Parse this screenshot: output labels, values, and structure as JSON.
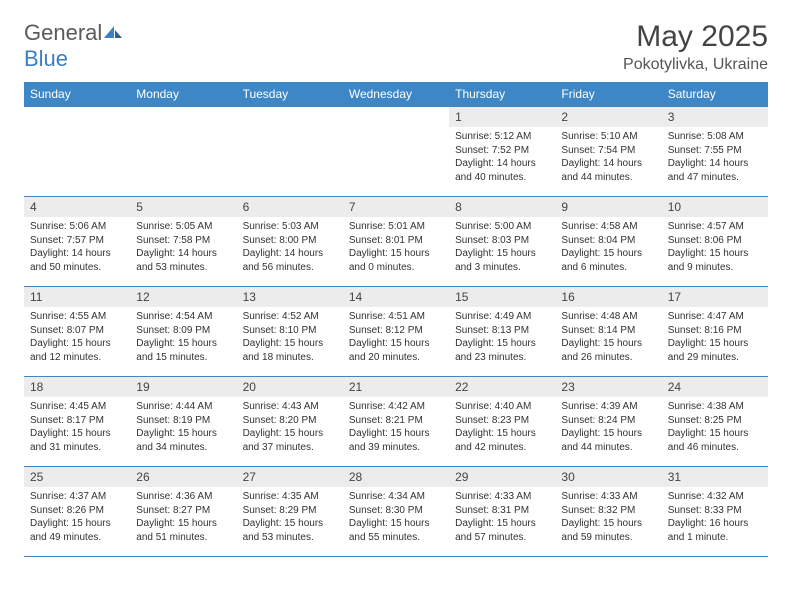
{
  "logo": {
    "word1": "General",
    "word2": "Blue"
  },
  "title": "May 2025",
  "subtitle": "Pokotylivka, Ukraine",
  "colors": {
    "header_bg": "#3d87c7",
    "header_text": "#ffffff",
    "band_bg": "#ececec",
    "border": "#3d87c7",
    "logo_gray": "#5a5a5a",
    "logo_blue": "#3b7fc4",
    "body_text": "#333333"
  },
  "typography": {
    "title_fontsize": 30,
    "subtitle_fontsize": 16,
    "dayhead_fontsize": 12,
    "daynum_fontsize": 12,
    "cell_fontsize": 10
  },
  "day_headers": [
    "Sunday",
    "Monday",
    "Tuesday",
    "Wednesday",
    "Thursday",
    "Friday",
    "Saturday"
  ],
  "weeks": [
    [
      {
        "n": "",
        "sunrise": "",
        "sunset": "",
        "daylight": ""
      },
      {
        "n": "",
        "sunrise": "",
        "sunset": "",
        "daylight": ""
      },
      {
        "n": "",
        "sunrise": "",
        "sunset": "",
        "daylight": ""
      },
      {
        "n": "",
        "sunrise": "",
        "sunset": "",
        "daylight": ""
      },
      {
        "n": "1",
        "sunrise": "Sunrise: 5:12 AM",
        "sunset": "Sunset: 7:52 PM",
        "daylight": "Daylight: 14 hours and 40 minutes."
      },
      {
        "n": "2",
        "sunrise": "Sunrise: 5:10 AM",
        "sunset": "Sunset: 7:54 PM",
        "daylight": "Daylight: 14 hours and 44 minutes."
      },
      {
        "n": "3",
        "sunrise": "Sunrise: 5:08 AM",
        "sunset": "Sunset: 7:55 PM",
        "daylight": "Daylight: 14 hours and 47 minutes."
      }
    ],
    [
      {
        "n": "4",
        "sunrise": "Sunrise: 5:06 AM",
        "sunset": "Sunset: 7:57 PM",
        "daylight": "Daylight: 14 hours and 50 minutes."
      },
      {
        "n": "5",
        "sunrise": "Sunrise: 5:05 AM",
        "sunset": "Sunset: 7:58 PM",
        "daylight": "Daylight: 14 hours and 53 minutes."
      },
      {
        "n": "6",
        "sunrise": "Sunrise: 5:03 AM",
        "sunset": "Sunset: 8:00 PM",
        "daylight": "Daylight: 14 hours and 56 minutes."
      },
      {
        "n": "7",
        "sunrise": "Sunrise: 5:01 AM",
        "sunset": "Sunset: 8:01 PM",
        "daylight": "Daylight: 15 hours and 0 minutes."
      },
      {
        "n": "8",
        "sunrise": "Sunrise: 5:00 AM",
        "sunset": "Sunset: 8:03 PM",
        "daylight": "Daylight: 15 hours and 3 minutes."
      },
      {
        "n": "9",
        "sunrise": "Sunrise: 4:58 AM",
        "sunset": "Sunset: 8:04 PM",
        "daylight": "Daylight: 15 hours and 6 minutes."
      },
      {
        "n": "10",
        "sunrise": "Sunrise: 4:57 AM",
        "sunset": "Sunset: 8:06 PM",
        "daylight": "Daylight: 15 hours and 9 minutes."
      }
    ],
    [
      {
        "n": "11",
        "sunrise": "Sunrise: 4:55 AM",
        "sunset": "Sunset: 8:07 PM",
        "daylight": "Daylight: 15 hours and 12 minutes."
      },
      {
        "n": "12",
        "sunrise": "Sunrise: 4:54 AM",
        "sunset": "Sunset: 8:09 PM",
        "daylight": "Daylight: 15 hours and 15 minutes."
      },
      {
        "n": "13",
        "sunrise": "Sunrise: 4:52 AM",
        "sunset": "Sunset: 8:10 PM",
        "daylight": "Daylight: 15 hours and 18 minutes."
      },
      {
        "n": "14",
        "sunrise": "Sunrise: 4:51 AM",
        "sunset": "Sunset: 8:12 PM",
        "daylight": "Daylight: 15 hours and 20 minutes."
      },
      {
        "n": "15",
        "sunrise": "Sunrise: 4:49 AM",
        "sunset": "Sunset: 8:13 PM",
        "daylight": "Daylight: 15 hours and 23 minutes."
      },
      {
        "n": "16",
        "sunrise": "Sunrise: 4:48 AM",
        "sunset": "Sunset: 8:14 PM",
        "daylight": "Daylight: 15 hours and 26 minutes."
      },
      {
        "n": "17",
        "sunrise": "Sunrise: 4:47 AM",
        "sunset": "Sunset: 8:16 PM",
        "daylight": "Daylight: 15 hours and 29 minutes."
      }
    ],
    [
      {
        "n": "18",
        "sunrise": "Sunrise: 4:45 AM",
        "sunset": "Sunset: 8:17 PM",
        "daylight": "Daylight: 15 hours and 31 minutes."
      },
      {
        "n": "19",
        "sunrise": "Sunrise: 4:44 AM",
        "sunset": "Sunset: 8:19 PM",
        "daylight": "Daylight: 15 hours and 34 minutes."
      },
      {
        "n": "20",
        "sunrise": "Sunrise: 4:43 AM",
        "sunset": "Sunset: 8:20 PM",
        "daylight": "Daylight: 15 hours and 37 minutes."
      },
      {
        "n": "21",
        "sunrise": "Sunrise: 4:42 AM",
        "sunset": "Sunset: 8:21 PM",
        "daylight": "Daylight: 15 hours and 39 minutes."
      },
      {
        "n": "22",
        "sunrise": "Sunrise: 4:40 AM",
        "sunset": "Sunset: 8:23 PM",
        "daylight": "Daylight: 15 hours and 42 minutes."
      },
      {
        "n": "23",
        "sunrise": "Sunrise: 4:39 AM",
        "sunset": "Sunset: 8:24 PM",
        "daylight": "Daylight: 15 hours and 44 minutes."
      },
      {
        "n": "24",
        "sunrise": "Sunrise: 4:38 AM",
        "sunset": "Sunset: 8:25 PM",
        "daylight": "Daylight: 15 hours and 46 minutes."
      }
    ],
    [
      {
        "n": "25",
        "sunrise": "Sunrise: 4:37 AM",
        "sunset": "Sunset: 8:26 PM",
        "daylight": "Daylight: 15 hours and 49 minutes."
      },
      {
        "n": "26",
        "sunrise": "Sunrise: 4:36 AM",
        "sunset": "Sunset: 8:27 PM",
        "daylight": "Daylight: 15 hours and 51 minutes."
      },
      {
        "n": "27",
        "sunrise": "Sunrise: 4:35 AM",
        "sunset": "Sunset: 8:29 PM",
        "daylight": "Daylight: 15 hours and 53 minutes."
      },
      {
        "n": "28",
        "sunrise": "Sunrise: 4:34 AM",
        "sunset": "Sunset: 8:30 PM",
        "daylight": "Daylight: 15 hours and 55 minutes."
      },
      {
        "n": "29",
        "sunrise": "Sunrise: 4:33 AM",
        "sunset": "Sunset: 8:31 PM",
        "daylight": "Daylight: 15 hours and 57 minutes."
      },
      {
        "n": "30",
        "sunrise": "Sunrise: 4:33 AM",
        "sunset": "Sunset: 8:32 PM",
        "daylight": "Daylight: 15 hours and 59 minutes."
      },
      {
        "n": "31",
        "sunrise": "Sunrise: 4:32 AM",
        "sunset": "Sunset: 8:33 PM",
        "daylight": "Daylight: 16 hours and 1 minute."
      }
    ]
  ]
}
